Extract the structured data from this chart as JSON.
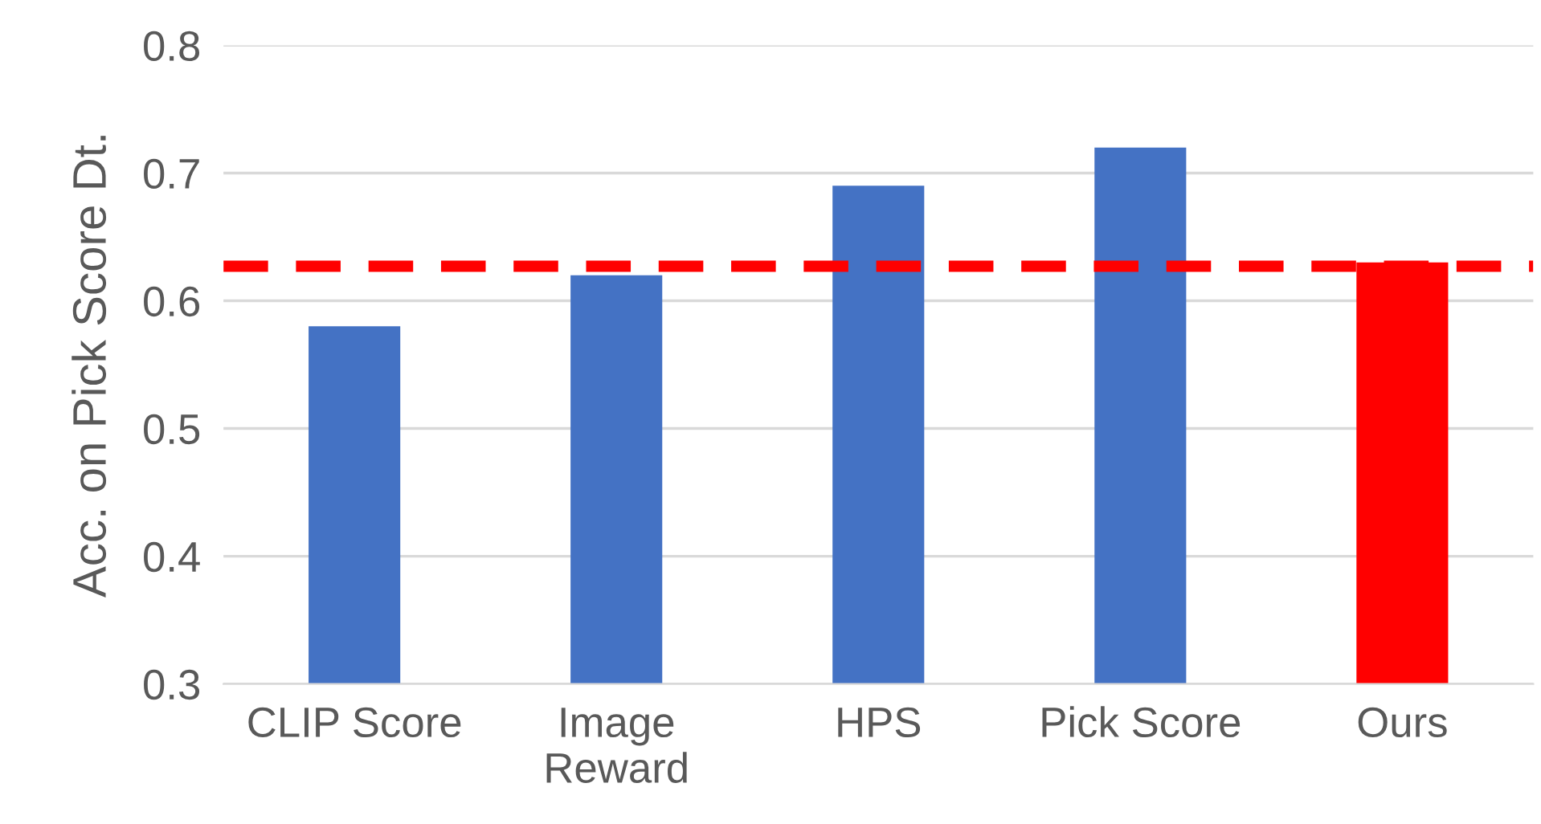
{
  "chart_data": {
    "type": "bar",
    "ylabel": "Acc. on Pick Score Dt.",
    "categories": [
      "CLIP Score",
      "Image\nReward",
      "HPS",
      "Pick Score",
      "Ours"
    ],
    "values": [
      0.58,
      0.62,
      0.69,
      0.72,
      0.63
    ],
    "colors": [
      "#4472c4",
      "#4472c4",
      "#4472c4",
      "#4472c4",
      "#ff0000"
    ],
    "ylim": [
      0.3,
      0.8
    ],
    "yticks": [
      0.3,
      0.4,
      0.5,
      0.6,
      0.7,
      0.8
    ],
    "grid": "y",
    "ref_lines": [
      {
        "axis": "y",
        "value": 0.627,
        "color": "#ff0000",
        "line_style": "dashed"
      }
    ]
  }
}
